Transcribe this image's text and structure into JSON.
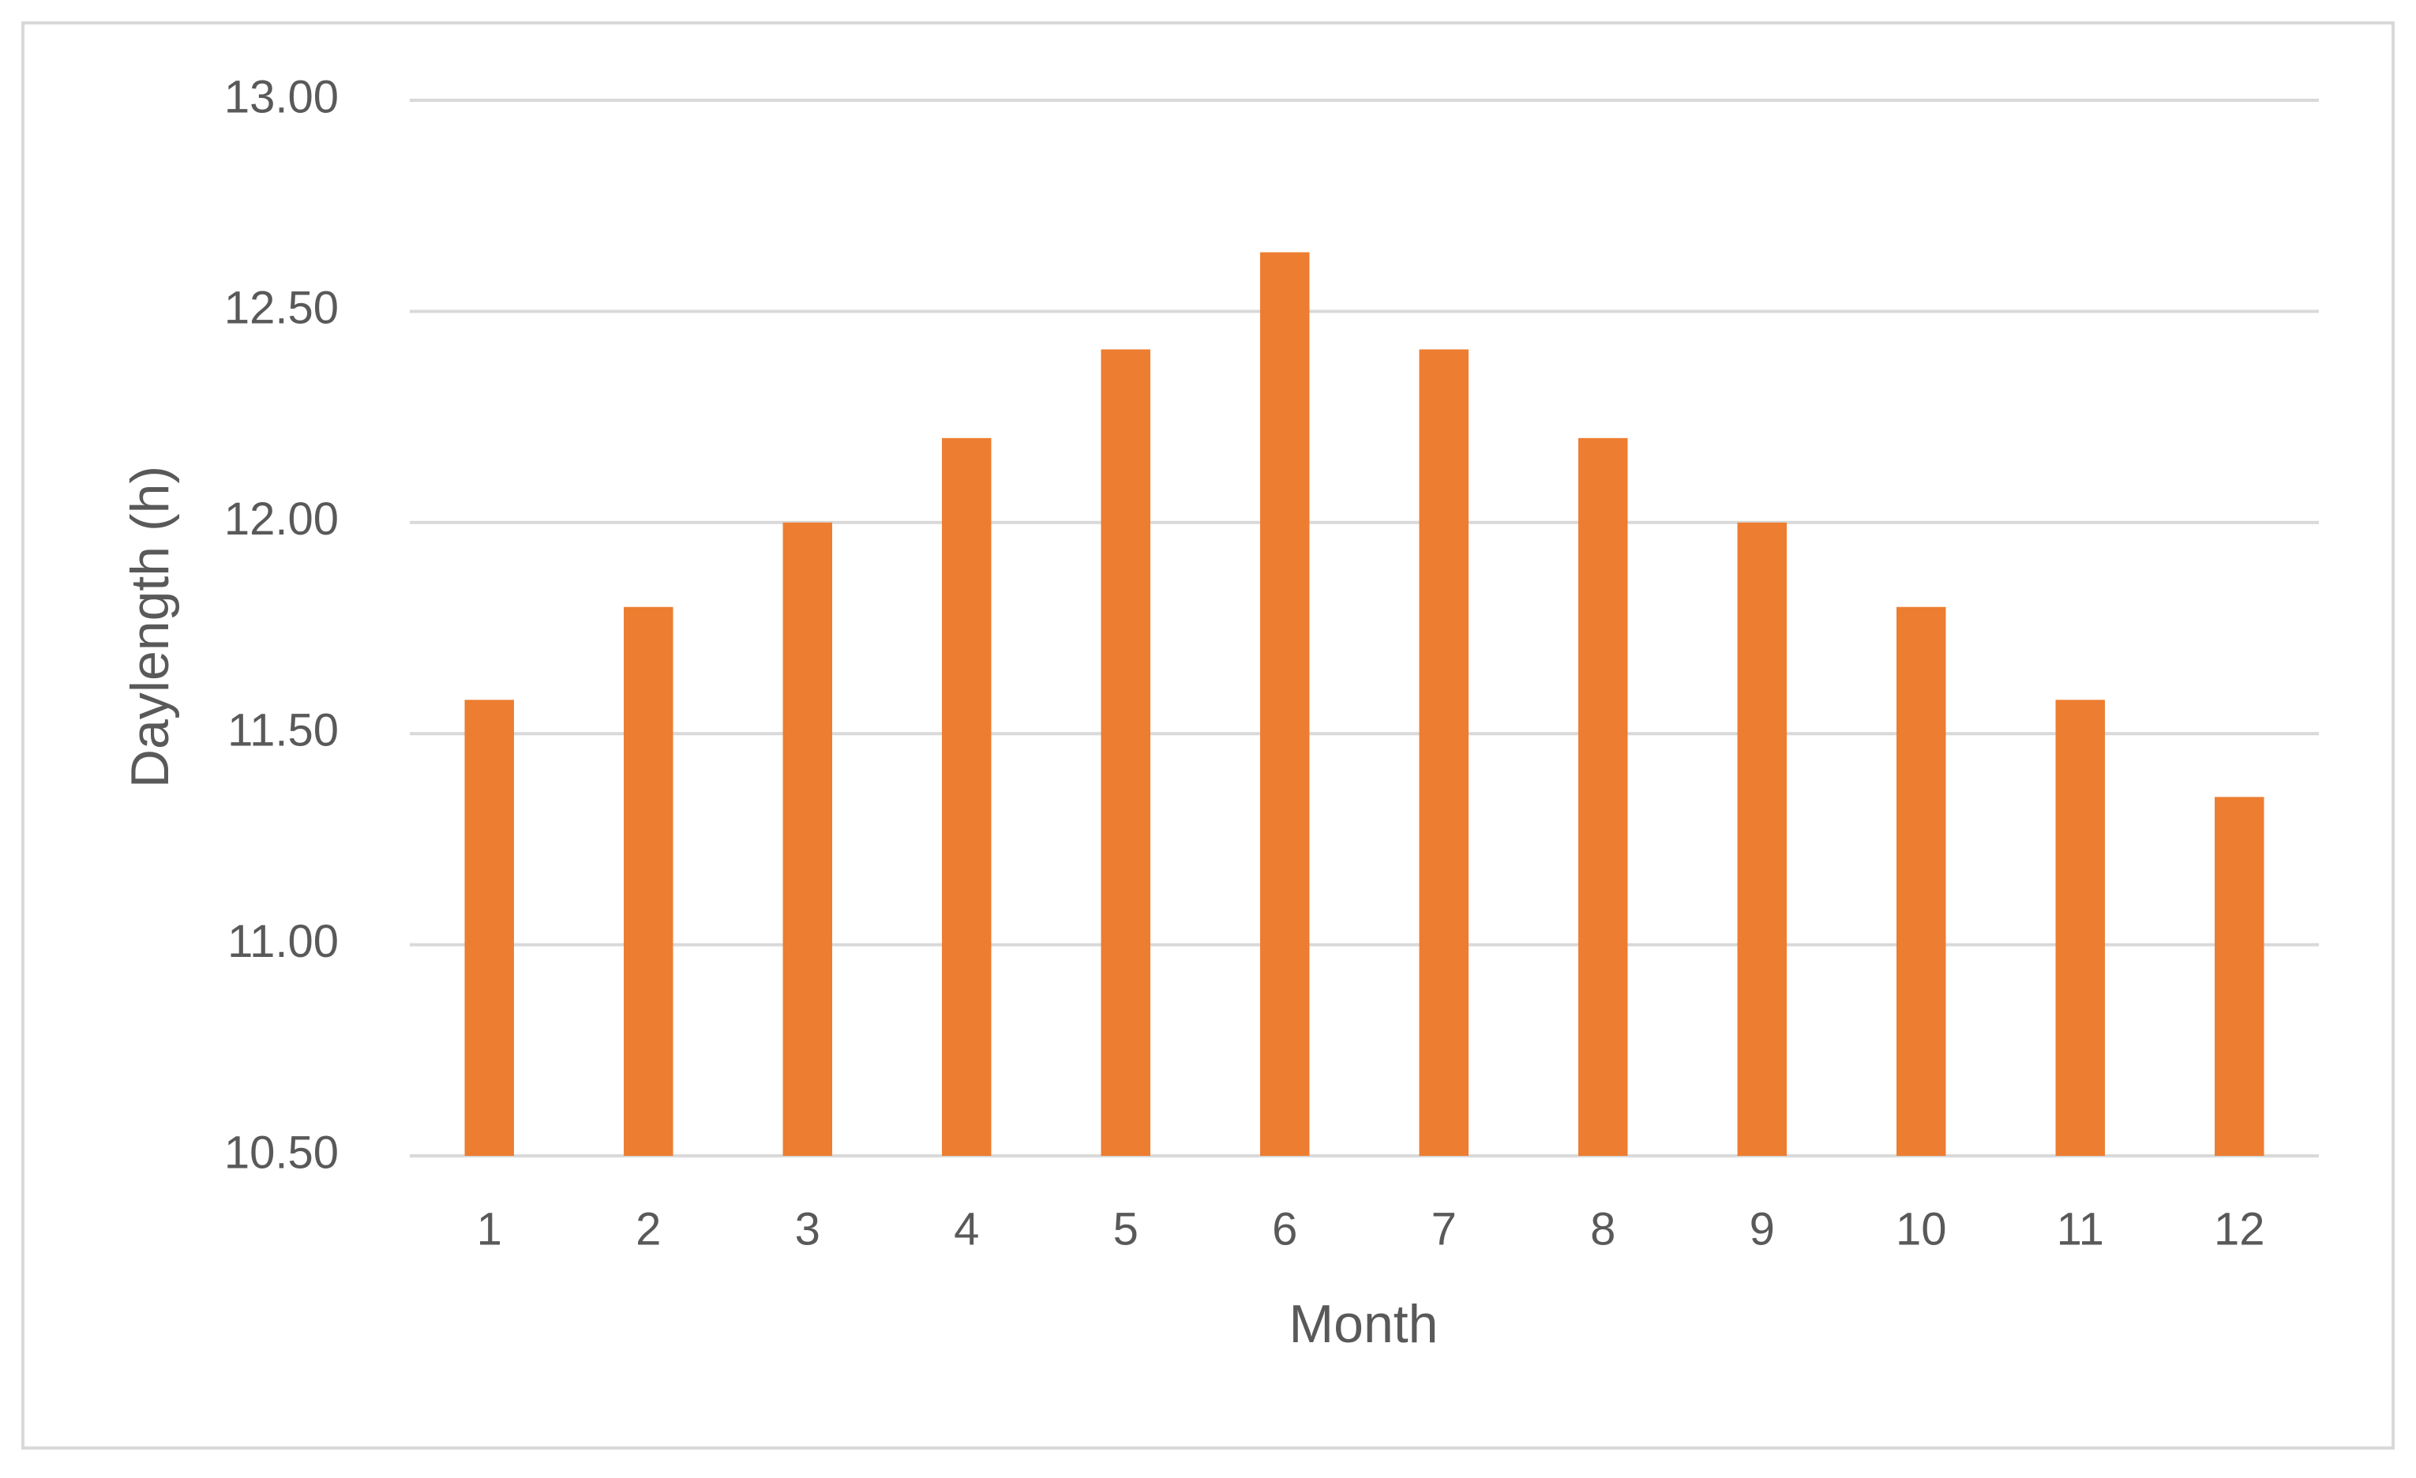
{
  "chart_data": {
    "type": "bar",
    "x_label": "Month",
    "y_label": "Daylength (h)",
    "categories": [
      "1",
      "2",
      "3",
      "4",
      "5",
      "6",
      "7",
      "8",
      "9",
      "10",
      "11",
      "12"
    ],
    "values": [
      11.58,
      11.8,
      12.0,
      12.2,
      12.41,
      12.64,
      12.41,
      12.2,
      12.0,
      11.8,
      11.58,
      11.35
    ],
    "color": "#ed7d31",
    "ylim": [
      10.5,
      13.0
    ],
    "yticks": [
      {
        "value": 10.5,
        "label": "10.50"
      },
      {
        "value": 11.0,
        "label": "11.00"
      },
      {
        "value": 11.5,
        "label": "11.50"
      },
      {
        "value": 12.0,
        "label": "12.00"
      },
      {
        "value": 12.5,
        "label": "12.50"
      },
      {
        "value": 13.0,
        "label": "13.00"
      }
    ],
    "grid": true
  }
}
